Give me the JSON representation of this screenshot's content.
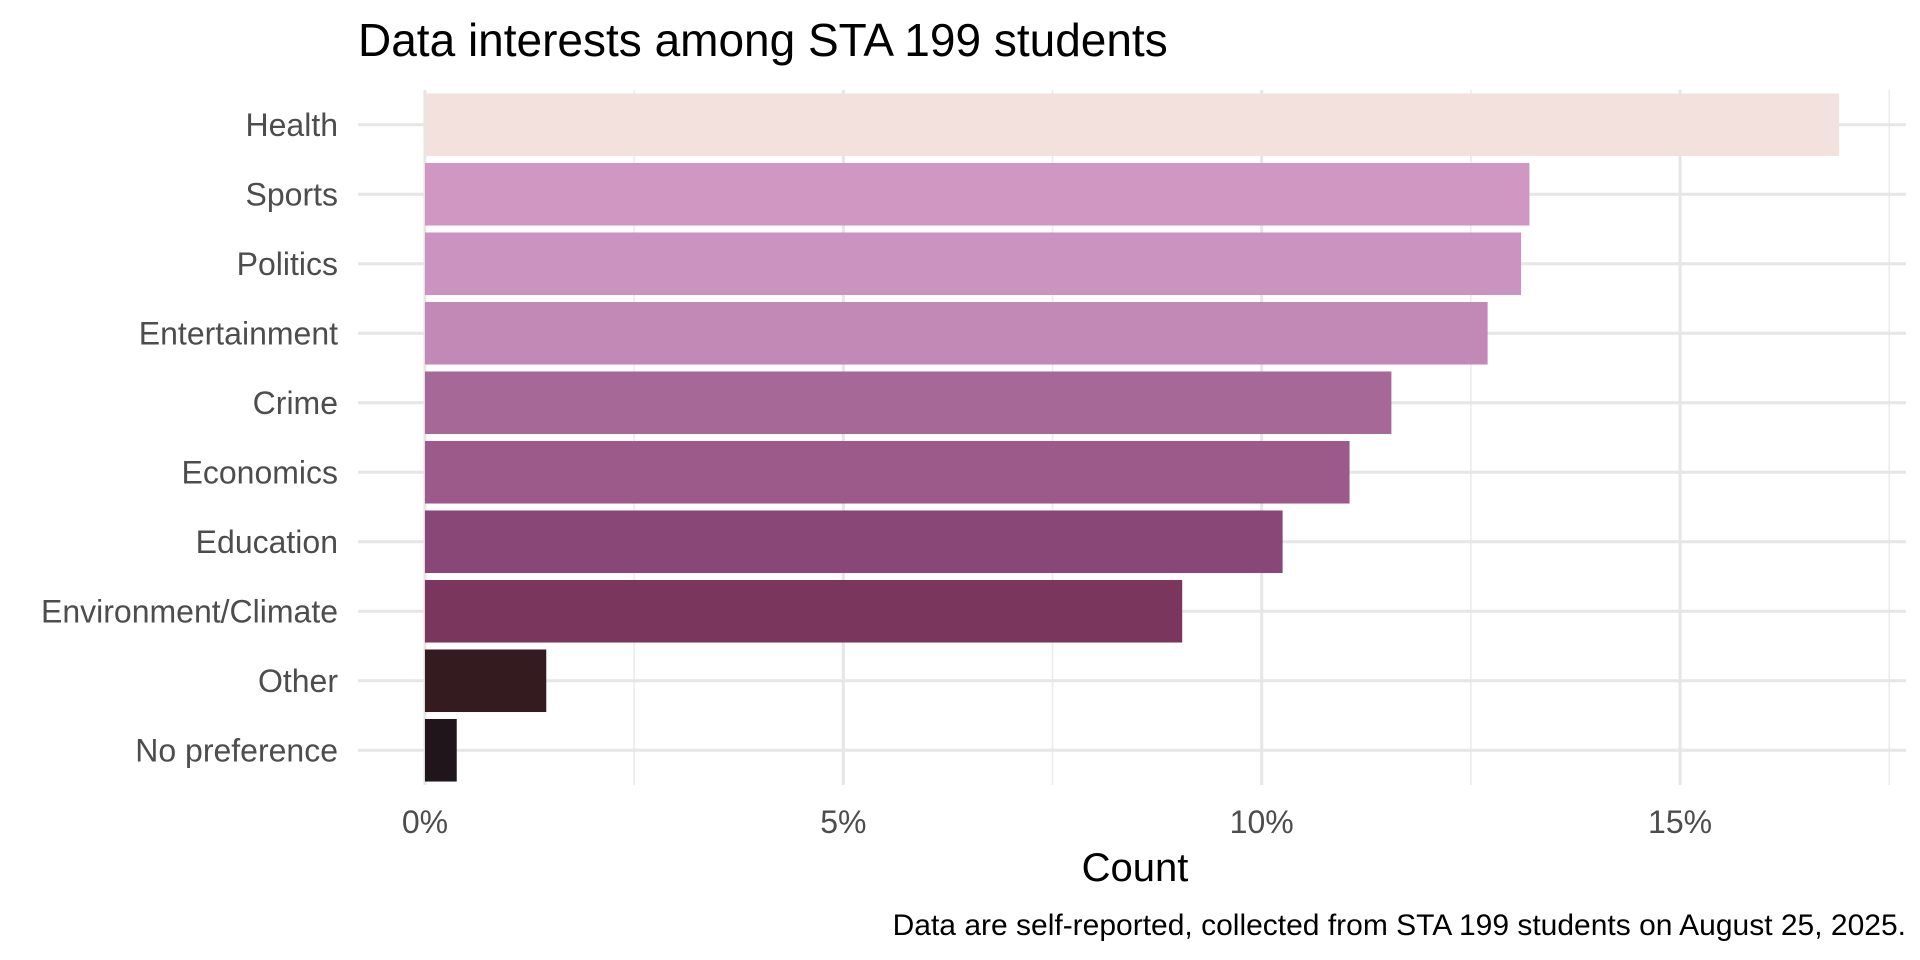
{
  "chart_data": {
    "type": "bar",
    "orientation": "horizontal",
    "title": "Data interests among STA 199 students",
    "xlabel": "Count",
    "ylabel": "",
    "caption": "Data are self-reported, collected from STA 199 students on August 25, 2025.",
    "categories": [
      "Health",
      "Sports",
      "Politics",
      "Entertainment",
      "Crime",
      "Economics",
      "Education",
      "Environment/Climate",
      "Other",
      "No preference"
    ],
    "values": [
      16.9,
      13.2,
      13.1,
      12.7,
      11.55,
      11.05,
      10.25,
      9.05,
      1.45,
      0.38
    ],
    "value_unit": "percent",
    "colors": [
      "#f2e1dc",
      "#cf97c2",
      "#cb93bf",
      "#c389b6",
      "#a66896",
      "#9b5a8a",
      "#884776",
      "#7b365d",
      "#331b1f",
      "#21151c"
    ],
    "xlim": [
      -0.8,
      17.7
    ],
    "x_ticks": [
      0,
      5,
      10,
      15
    ],
    "x_tick_labels": [
      "0%",
      "5%",
      "10%",
      "15%"
    ],
    "grid": true,
    "legend": "none"
  }
}
